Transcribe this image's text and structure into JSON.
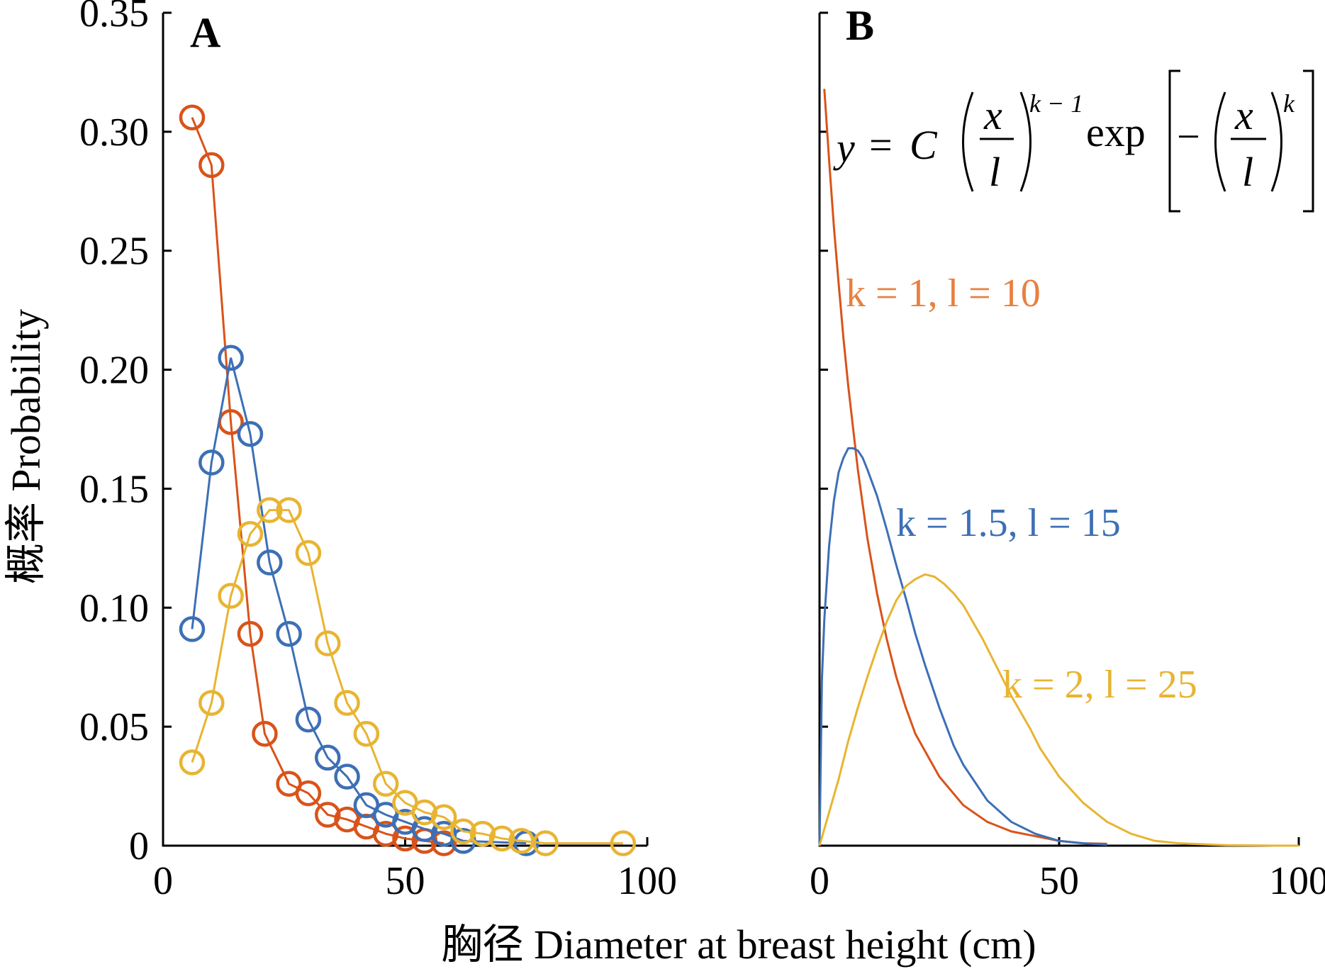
{
  "ylabel": "概率 Probability",
  "xlabel": "胸径 Diameter at breast height (cm)",
  "colors": {
    "orange": "#D95319",
    "blue": "#3D6FB5",
    "yellow": "#E8B432",
    "label_orange": "#E8803F"
  },
  "formula": {
    "lhs": "y",
    "eq": "=",
    "const": "C",
    "num": "x",
    "den": "l",
    "exp1": "k − 1",
    "func": "exp",
    "minus": "−",
    "exp2": "k"
  },
  "chart_data": [
    {
      "panel": "A",
      "type": "line",
      "xlim": [
        0,
        100
      ],
      "ylim": [
        0,
        0.35
      ],
      "xticks": [
        "0",
        "50",
        "100"
      ],
      "yticks": [
        "0",
        "0.05",
        "0.10",
        "0.15",
        "0.20",
        "0.25",
        "0.30",
        "0.35"
      ],
      "grid": false,
      "series": [
        {
          "color": "orange",
          "x": [
            6,
            10,
            14,
            18,
            21,
            26,
            30,
            34,
            38,
            42,
            46,
            50,
            54,
            58
          ],
          "y": [
            0.306,
            0.286,
            0.178,
            0.089,
            0.047,
            0.026,
            0.022,
            0.013,
            0.011,
            0.008,
            0.005,
            0.003,
            0.002,
            0.001
          ]
        },
        {
          "color": "blue",
          "x": [
            6,
            10,
            14,
            18,
            22,
            26,
            30,
            34,
            38,
            42,
            46,
            50,
            54,
            58,
            62,
            75
          ],
          "y": [
            0.091,
            0.161,
            0.205,
            0.173,
            0.119,
            0.089,
            0.053,
            0.037,
            0.029,
            0.017,
            0.013,
            0.01,
            0.007,
            0.005,
            0.002,
            0.001
          ]
        },
        {
          "color": "yellow",
          "x": [
            6,
            10,
            14,
            18,
            22,
            26,
            30,
            34,
            38,
            42,
            46,
            50,
            54,
            58,
            62,
            66,
            70,
            74,
            79,
            95
          ],
          "y": [
            0.035,
            0.06,
            0.105,
            0.131,
            0.141,
            0.141,
            0.123,
            0.085,
            0.06,
            0.047,
            0.026,
            0.018,
            0.014,
            0.012,
            0.006,
            0.005,
            0.003,
            0.002,
            0.001,
            0.001
          ]
        }
      ]
    },
    {
      "panel": "B",
      "type": "line",
      "xlim": [
        0,
        100
      ],
      "ylim": [
        0,
        0.35
      ],
      "xticks": [
        "0",
        "50",
        "100"
      ],
      "grid": false,
      "series": [
        {
          "name": "k = 1, l = 10",
          "k": 1,
          "l": 10,
          "color": "orange",
          "label_color": "label_orange",
          "x": [
            1,
            2,
            3,
            4,
            5,
            6,
            8,
            10,
            12,
            14,
            16,
            18,
            20,
            25,
            30,
            35,
            40,
            45,
            50,
            55,
            60
          ],
          "y": [
            0.318,
            0.288,
            0.26,
            0.236,
            0.213,
            0.193,
            0.158,
            0.129,
            0.106,
            0.087,
            0.071,
            0.058,
            0.047,
            0.029,
            0.017,
            0.01,
            0.006,
            0.004,
            0.002,
            0.001,
            0.0008
          ]
        },
        {
          "name": "k = 1.5, l = 15",
          "k": 1.5,
          "l": 15,
          "color": "blue",
          "x": [
            0,
            0.5,
            1,
            2,
            3,
            4,
            5,
            6,
            7,
            8,
            9,
            10,
            12,
            14,
            16,
            18,
            20,
            22,
            25,
            28,
            30,
            35,
            40,
            45,
            50,
            55,
            60
          ],
          "y": [
            0,
            0.07,
            0.095,
            0.126,
            0.145,
            0.157,
            0.163,
            0.167,
            0.167,
            0.166,
            0.163,
            0.158,
            0.147,
            0.133,
            0.118,
            0.104,
            0.089,
            0.076,
            0.058,
            0.042,
            0.034,
            0.019,
            0.01,
            0.005,
            0.002,
            0.001,
            0.0004
          ]
        },
        {
          "name": "k = 2, l = 25",
          "k": 2,
          "l": 25,
          "color": "yellow",
          "x": [
            0,
            2,
            4,
            6,
            8,
            10,
            12,
            14,
            16,
            18,
            20,
            22,
            24,
            26,
            28,
            30,
            32,
            34,
            36,
            38,
            40,
            42,
            44,
            46,
            48,
            50,
            55,
            60,
            65,
            70,
            75,
            80,
            85,
            90,
            95,
            100
          ],
          "y": [
            0,
            0.014,
            0.028,
            0.044,
            0.058,
            0.071,
            0.083,
            0.094,
            0.103,
            0.109,
            0.112,
            0.114,
            0.113,
            0.11,
            0.106,
            0.101,
            0.094,
            0.087,
            0.079,
            0.071,
            0.063,
            0.056,
            0.049,
            0.041,
            0.035,
            0.029,
            0.018,
            0.01,
            0.005,
            0.002,
            0.001,
            0.0006,
            0.0002,
            0.0001,
            0,
            0
          ]
        }
      ]
    }
  ]
}
